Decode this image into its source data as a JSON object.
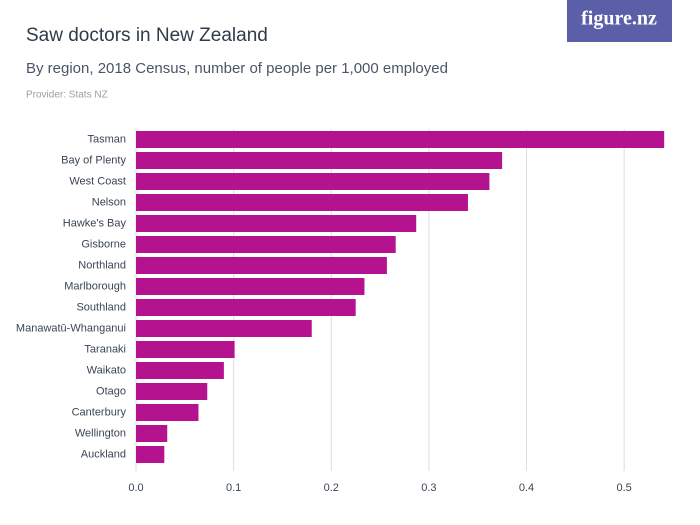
{
  "chart_data": {
    "type": "bar",
    "orientation": "horizontal",
    "title": "Saw doctors in New Zealand",
    "subtitle": "By region, 2018 Census, number of people per 1,000 employed",
    "source": "Provider: Stats NZ",
    "logo": "figure.nz",
    "categories": [
      "Tasman",
      "Bay of Plenty",
      "West Coast",
      "Nelson",
      "Hawke's Bay",
      "Gisborne",
      "Northland",
      "Marlborough",
      "Southland",
      "Manawatū-Whanganui",
      "Taranaki",
      "Waikato",
      "Otago",
      "Canterbury",
      "Wellington",
      "Auckland"
    ],
    "values": [
      0.541,
      0.375,
      0.362,
      0.34,
      0.287,
      0.266,
      0.257,
      0.234,
      0.225,
      0.18,
      0.101,
      0.09,
      0.073,
      0.064,
      0.032,
      0.029
    ],
    "color": "#b5128f",
    "xlim": [
      0,
      0.549
    ],
    "xticks": [
      {
        "value": 0,
        "label": "0.0"
      },
      0.1,
      0.2,
      0.3,
      0.4,
      0.5
    ],
    "grid": true
  }
}
